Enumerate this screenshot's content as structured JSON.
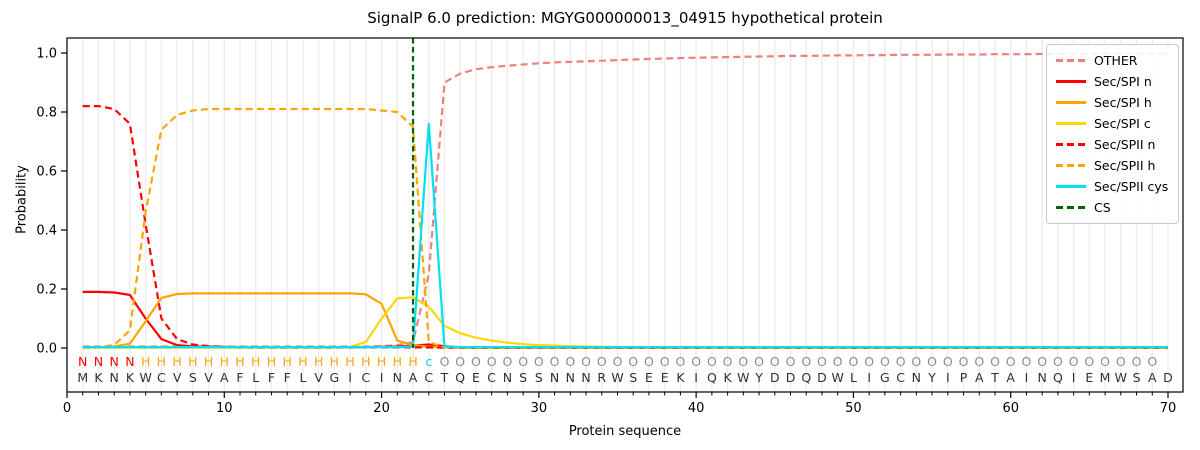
{
  "title": "SignalP 6.0 prediction: MGYG000000013_04915 hypothetical protein",
  "axes": {
    "xlabel": "Protein sequence",
    "ylabel": "Probability",
    "x_major_ticks": [
      0,
      10,
      20,
      30,
      40,
      50,
      60,
      70
    ],
    "y_ticks": [
      {
        "label": "0.0",
        "v": 0.0
      },
      {
        "label": "0.2",
        "v": 0.2
      },
      {
        "label": "0.4",
        "v": 0.4
      },
      {
        "label": "0.6",
        "v": 0.6
      },
      {
        "label": "0.8",
        "v": 0.8
      },
      {
        "label": "1.0",
        "v": 1.0
      }
    ]
  },
  "colors": {
    "other": "#f08080",
    "red": "#ff0000",
    "orange": "#ffa500",
    "gold": "#ffd700",
    "cyan": "#00e0f5",
    "darkgreen": "#006400",
    "grid": "#ebebeb",
    "spine": "#000000",
    "annotation_N": "#ff0000",
    "annotation_H": "#ffa500",
    "annotation_c": "#00d8ee",
    "annotation_O": "#8c8c8c",
    "residue_text": "#303030"
  },
  "legend": {
    "items": [
      {
        "label": "OTHER",
        "color": "#f08080",
        "dash": true
      },
      {
        "label": "Sec/SPI n",
        "color": "#ff0000",
        "dash": false
      },
      {
        "label": "Sec/SPI h",
        "color": "#ffa500",
        "dash": false
      },
      {
        "label": "Sec/SPI c",
        "color": "#ffd700",
        "dash": false
      },
      {
        "label": "Sec/SPII n",
        "color": "#ff0000",
        "dash": true
      },
      {
        "label": "Sec/SPII h",
        "color": "#ffa500",
        "dash": true
      },
      {
        "label": "Sec/SPII cys",
        "color": "#00e0f5",
        "dash": false
      },
      {
        "label": "CS",
        "color": "#006400",
        "dash": true
      }
    ]
  },
  "sequence_track": {
    "residues": "MKNKWCVSVAFLFFLVGICINACTQECNSSNNNRWSEEKIQKWYDDQDWLIGCNYIPATAINQIEMWSAD",
    "annotation": "NNNNHHHHHHHHHHHHHHHHHHcOOOOOOOOOOOOOOOOOOOOOOOOOOOOOOOOOOOOOOOOOOOOOO"
  },
  "chart_data": {
    "type": "line",
    "title": "SignalP 6.0 prediction: MGYG000000013_04915 hypothetical protein",
    "xlabel": "Protein sequence",
    "ylabel": "Probability",
    "xlim": [
      0,
      71
    ],
    "ylim": [
      0,
      1.0
    ],
    "grid": "vertical-per-residue",
    "legend_position": "upper right",
    "cs_position": 22,
    "x_positions": "1..70 (one point per residue)",
    "series": [
      {
        "name": "OTHER",
        "color": "#f08080",
        "style": "dashed",
        "values": [
          0.005,
          0.005,
          0.005,
          0.005,
          0.005,
          0.005,
          0.005,
          0.005,
          0.005,
          0.005,
          0.005,
          0.005,
          0.005,
          0.005,
          0.005,
          0.005,
          0.005,
          0.005,
          0.005,
          0.006,
          0.01,
          0.02,
          0.25,
          0.9,
          0.93,
          0.945,
          0.952,
          0.957,
          0.961,
          0.965,
          0.968,
          0.97,
          0.972,
          0.974,
          0.976,
          0.978,
          0.98,
          0.981,
          0.983,
          0.984,
          0.985,
          0.986,
          0.987,
          0.988,
          0.989,
          0.99,
          0.99,
          0.991,
          0.992,
          0.992,
          0.993,
          0.993,
          0.994,
          0.994,
          0.994,
          0.995,
          0.995,
          0.995,
          0.996,
          0.996,
          0.996,
          0.997,
          0.997,
          0.997,
          0.997,
          0.998,
          0.998,
          0.998,
          0.998,
          0.998
        ]
      },
      {
        "name": "Sec/SPI n",
        "color": "#ff0000",
        "style": "solid",
        "values": [
          0.19,
          0.19,
          0.188,
          0.18,
          0.1,
          0.03,
          0.01,
          0.005,
          0.004,
          0.003,
          0.003,
          0.003,
          0.003,
          0.003,
          0.003,
          0.003,
          0.003,
          0.003,
          0.003,
          0.004,
          0.005,
          0.008,
          0.012,
          0.006,
          0.002,
          0.001,
          0.001,
          0.001,
          0.001,
          0.001,
          0.001,
          0.001,
          0.001,
          0.001,
          0.001,
          0.001,
          0.001,
          0.001,
          0.001,
          0.001,
          0.001,
          0.001,
          0.001,
          0.001,
          0.001,
          0.001,
          0.001,
          0.001,
          0.001,
          0.001,
          0.001,
          0.001,
          0.001,
          0.001,
          0.001,
          0.001,
          0.001,
          0.001,
          0.001,
          0.001,
          0.001,
          0.001,
          0.001,
          0.001,
          0.001,
          0.001,
          0.001,
          0.001,
          0.001,
          0.001
        ]
      },
      {
        "name": "Sec/SPI h",
        "color": "#ffa500",
        "style": "solid",
        "values": [
          0.001,
          0.002,
          0.005,
          0.015,
          0.09,
          0.17,
          0.183,
          0.185,
          0.185,
          0.185,
          0.185,
          0.185,
          0.185,
          0.185,
          0.185,
          0.185,
          0.185,
          0.185,
          0.182,
          0.15,
          0.025,
          0.01,
          0.004,
          0.002,
          0.001,
          0.001,
          0.001,
          0.001,
          0.001,
          0.001,
          0.001,
          0.001,
          0.001,
          0.001,
          0.001,
          0.001,
          0.001,
          0.001,
          0.001,
          0.001,
          0.001,
          0.001,
          0.001,
          0.001,
          0.001,
          0.001,
          0.001,
          0.001,
          0.001,
          0.001,
          0.001,
          0.001,
          0.001,
          0.001,
          0.001,
          0.001,
          0.001,
          0.001,
          0.001,
          0.001,
          0.001,
          0.001,
          0.001,
          0.001,
          0.001,
          0.001,
          0.001,
          0.001,
          0.001,
          0.001
        ]
      },
      {
        "name": "Sec/SPI c",
        "color": "#ffd700",
        "style": "solid",
        "values": [
          0.001,
          0.001,
          0.001,
          0.001,
          0.001,
          0.001,
          0.001,
          0.001,
          0.001,
          0.001,
          0.001,
          0.001,
          0.001,
          0.001,
          0.001,
          0.001,
          0.001,
          0.004,
          0.02,
          0.1,
          0.168,
          0.172,
          0.14,
          0.075,
          0.05,
          0.035,
          0.025,
          0.018,
          0.013,
          0.01,
          0.008,
          0.006,
          0.005,
          0.004,
          0.003,
          0.003,
          0.002,
          0.002,
          0.002,
          0.001,
          0.001,
          0.001,
          0.001,
          0.001,
          0.001,
          0.001,
          0.001,
          0.001,
          0.001,
          0.001,
          0.001,
          0.001,
          0.001,
          0.001,
          0.001,
          0.001,
          0.001,
          0.001,
          0.001,
          0.001,
          0.001,
          0.001,
          0.001,
          0.001,
          0.001,
          0.001,
          0.001,
          0.001,
          0.001,
          0.001
        ]
      },
      {
        "name": "Sec/SPII n",
        "color": "#ff0000",
        "style": "dashed",
        "values": [
          0.82,
          0.82,
          0.81,
          0.76,
          0.42,
          0.1,
          0.03,
          0.012,
          0.006,
          0.004,
          0.003,
          0.002,
          0.002,
          0.002,
          0.002,
          0.002,
          0.002,
          0.002,
          0.002,
          0.002,
          0.002,
          0.002,
          0.002,
          0.001,
          0.001,
          0.001,
          0.001,
          0.001,
          0.001,
          0.001,
          0.001,
          0.001,
          0.001,
          0.001,
          0.001,
          0.001,
          0.001,
          0.001,
          0.001,
          0.001,
          0.001,
          0.001,
          0.001,
          0.001,
          0.001,
          0.001,
          0.001,
          0.001,
          0.001,
          0.001,
          0.001,
          0.001,
          0.001,
          0.001,
          0.001,
          0.001,
          0.001,
          0.001,
          0.001,
          0.001,
          0.001,
          0.001,
          0.001,
          0.001,
          0.001,
          0.001,
          0.001,
          0.001,
          0.001,
          0.001
        ]
      },
      {
        "name": "Sec/SPII h",
        "color": "#ffa500",
        "style": "dashed",
        "values": [
          0.001,
          0.003,
          0.01,
          0.06,
          0.46,
          0.74,
          0.79,
          0.805,
          0.81,
          0.81,
          0.81,
          0.81,
          0.81,
          0.81,
          0.81,
          0.81,
          0.81,
          0.81,
          0.81,
          0.805,
          0.8,
          0.75,
          0.02,
          0.002,
          0.001,
          0.001,
          0.001,
          0.001,
          0.001,
          0.001,
          0.001,
          0.001,
          0.001,
          0.001,
          0.001,
          0.001,
          0.001,
          0.001,
          0.001,
          0.001,
          0.001,
          0.001,
          0.001,
          0.001,
          0.001,
          0.001,
          0.001,
          0.001,
          0.001,
          0.001,
          0.001,
          0.001,
          0.001,
          0.001,
          0.001,
          0.001,
          0.001,
          0.001,
          0.001,
          0.001,
          0.001,
          0.001,
          0.001,
          0.001,
          0.001,
          0.001,
          0.001,
          0.001,
          0.001,
          0.001
        ]
      },
      {
        "name": "Sec/SPII cys",
        "color": "#00e0f5",
        "style": "solid",
        "values": [
          0.003,
          0.003,
          0.003,
          0.003,
          0.003,
          0.003,
          0.003,
          0.003,
          0.003,
          0.003,
          0.003,
          0.003,
          0.003,
          0.003,
          0.003,
          0.003,
          0.003,
          0.003,
          0.003,
          0.003,
          0.003,
          0.005,
          0.76,
          0.005,
          0.003,
          0.003,
          0.003,
          0.003,
          0.003,
          0.003,
          0.003,
          0.003,
          0.003,
          0.003,
          0.003,
          0.003,
          0.003,
          0.003,
          0.003,
          0.003,
          0.003,
          0.003,
          0.003,
          0.003,
          0.003,
          0.003,
          0.003,
          0.003,
          0.003,
          0.003,
          0.003,
          0.003,
          0.003,
          0.003,
          0.003,
          0.003,
          0.003,
          0.003,
          0.003,
          0.003,
          0.003,
          0.003,
          0.003,
          0.003,
          0.003,
          0.003,
          0.003,
          0.003,
          0.003,
          0.003
        ]
      },
      {
        "name": "CS",
        "color": "#006400",
        "style": "dashed-vertical",
        "x": 22,
        "values": []
      }
    ]
  }
}
